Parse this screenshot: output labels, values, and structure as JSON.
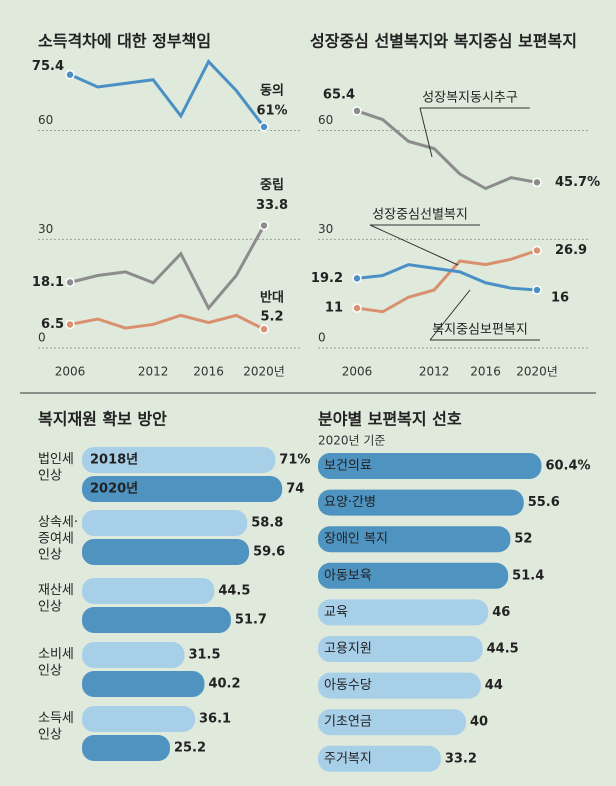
{
  "chart_data": [
    {
      "type": "line",
      "title": "소득격차에 대한 정부책임",
      "x": [
        2006,
        2008,
        2010,
        2012,
        2014,
        2016,
        2018,
        2020
      ],
      "xlim": [
        2006,
        2020
      ],
      "xticks": [
        2006,
        2012,
        2016,
        {
          "value": 2020,
          "label": "2020년"
        }
      ],
      "ylim": [
        0,
        80
      ],
      "yticks": [
        0,
        30,
        60
      ],
      "grid": true,
      "series": [
        {
          "name": "동의",
          "color": "#4a90c4",
          "values": [
            75.4,
            72,
            73,
            74,
            64,
            79,
            71,
            61
          ],
          "value_labels": [
            null,
            null,
            null,
            null,
            null,
            null,
            null,
            "61%"
          ]
        },
        {
          "name": "중립",
          "color": "#8c8c8c",
          "values": [
            18.1,
            20,
            21,
            18,
            26,
            11,
            20,
            33.8
          ]
        },
        {
          "name": "반대",
          "color": "#d9906e",
          "values": [
            6.5,
            8,
            5.5,
            6.5,
            9,
            7,
            9,
            5.2
          ]
        }
      ]
    },
    {
      "type": "line",
      "title": "성장중심 선별복지와 복지중심 보편복지",
      "x": [
        2006,
        2008,
        2010,
        2012,
        2014,
        2016,
        2018,
        2020
      ],
      "xlim": [
        2006,
        2020
      ],
      "xticks": [
        2006,
        2012,
        2016,
        {
          "value": 2020,
          "label": "2020년"
        }
      ],
      "ylim": [
        0,
        80
      ],
      "yticks": [
        0,
        30,
        60
      ],
      "grid": true,
      "series": [
        {
          "name": "성장복지동시추구",
          "color": "#8c8c8c",
          "values": [
            65.4,
            63,
            57,
            55,
            48,
            44,
            47,
            45.7
          ],
          "value_labels": [
            null,
            null,
            null,
            null,
            null,
            null,
            null,
            "45.7%"
          ]
        },
        {
          "name": "성장중심선별복지",
          "color": "#d9906e",
          "values": [
            11,
            10,
            14,
            16,
            24,
            23,
            24.5,
            26.9
          ]
        },
        {
          "name": "복지중심보편복지",
          "color": "#4a90c4",
          "values": [
            19.2,
            20,
            23,
            22,
            21,
            18,
            16.5,
            16
          ]
        }
      ]
    },
    {
      "type": "hbar-group",
      "title": "복지재원 확보 방안",
      "categories": [
        "법인세\n인상",
        "상속세·\n증여세\n인상",
        "재산세\n인상",
        "소비세\n인상",
        "소득세\n인상"
      ],
      "series": [
        {
          "name": "2018년",
          "color": "#a8cfe8",
          "values": [
            71,
            58.8,
            44.5,
            31.5,
            36.1
          ],
          "value_labels": [
            "71%",
            null,
            null,
            null,
            null
          ]
        },
        {
          "name": "2020년",
          "color": "#4f93c0",
          "values": [
            74,
            59.6,
            51.7,
            40.2,
            25.2
          ]
        }
      ]
    },
    {
      "type": "hbar",
      "title": "분야별 보편복지 선호",
      "subtitle": "2020년 기준",
      "categories": [
        "보건의료",
        "요양·간병",
        "장애인 복지",
        "아동보육",
        "교육",
        "고용지원",
        "아동수당",
        "기초연금",
        "주거복지"
      ],
      "values": [
        60.4,
        55.6,
        52,
        51.4,
        46,
        44.5,
        44,
        40,
        33.2
      ],
      "value_labels": [
        "60.4%",
        null,
        null,
        null,
        null,
        null,
        null,
        null,
        null
      ],
      "colors": [
        "#4f93c0",
        "#4f93c0",
        "#4f93c0",
        "#4f93c0",
        "#a8cfe8",
        "#a8cfe8",
        "#a8cfe8",
        "#a8cfe8",
        "#a8cfe8"
      ]
    }
  ]
}
